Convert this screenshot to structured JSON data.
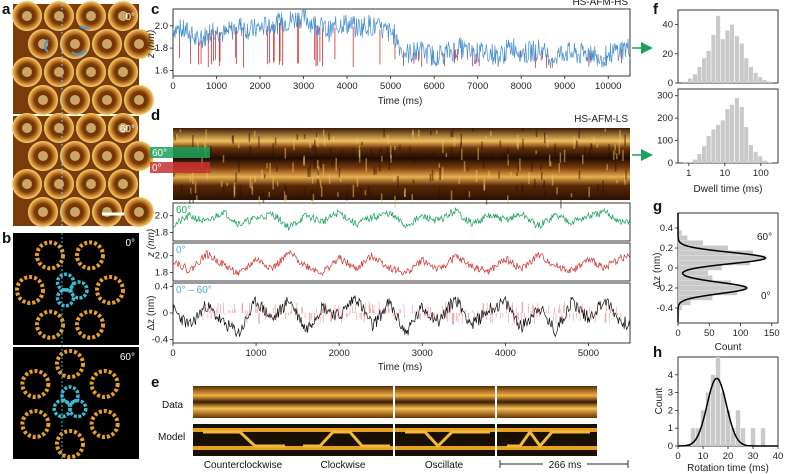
{
  "panel_letters": [
    "a",
    "b",
    "c",
    "d",
    "e",
    "f",
    "g",
    "h"
  ],
  "panel_a": {
    "angles": [
      "0°",
      "60°"
    ]
  },
  "panel_b": {
    "angles": [
      "0°",
      "60°"
    ]
  },
  "panel_c": {
    "title": "HS-AFM-HS",
    "ylabel": "z (nm)",
    "xlabel": "Time (ms)"
  },
  "panel_d": {
    "title": "HS-AFM-LS",
    "kymo_labels": [
      "60°",
      "0°"
    ],
    "trace1_label": "60°",
    "trace2_label": "0°",
    "trace3_label": "0° – 60°",
    "ylabel_z": "z (nm)",
    "ylabel_dz": "Δz (nm)",
    "xlabel": "Time (ms)"
  },
  "panel_e": {
    "row_labels": [
      "Data",
      "Model"
    ],
    "model_names": [
      "Counterclockwise",
      "Clockwise",
      "Oscillate"
    ],
    "scale_label": "266 ms"
  },
  "panel_f": {
    "xlabel": "Dwell time (ms)"
  },
  "panel_g": {
    "ylabel": "Δz (nm)",
    "xlabel": "Count",
    "peak_labels": [
      "60°",
      "0°"
    ]
  },
  "panel_h": {
    "ylabel": "Count",
    "xlabel": "Rotation time (ms)"
  },
  "colors": {
    "blue": "#4a90d0",
    "red": "#d03030",
    "green": "#1aa15a",
    "black": "#111111",
    "gray": "#c9c9c9",
    "orange": "#e8a020",
    "cyan": "#40b8d0"
  },
  "chart_data": [
    {
      "panel": "c",
      "type": "line",
      "title": "HS-AFM-HS",
      "xlabel": "Time (ms)",
      "ylabel": "z (nm)",
      "xlim": [
        0,
        10500
      ],
      "ylim": [
        1.55,
        2.15
      ],
      "xticks": [
        0,
        1000,
        2000,
        3000,
        4000,
        5000,
        6000,
        7000,
        8000,
        9000,
        10000
      ],
      "yticks": [
        1.6,
        1.8,
        2.0
      ],
      "x": [
        0,
        300,
        600,
        900,
        1200,
        1500,
        1800,
        2100,
        2400,
        2700,
        3000,
        3300,
        3600,
        3900,
        4200,
        4500,
        4800,
        5100,
        5250,
        5400,
        5700,
        6000,
        6300,
        6600,
        6900,
        7200,
        7500,
        7800,
        8100,
        8400,
        8700,
        9000,
        9300,
        9600,
        9900,
        10200,
        10450
      ],
      "series": [
        {
          "values": [
            1.98,
            1.95,
            1.85,
            1.97,
            1.92,
            2.0,
            1.96,
            1.99,
            2.02,
            2.05,
            2.08,
            2.0,
            1.95,
            2.03,
            1.98,
            2.01,
            1.96,
            1.92,
            1.78,
            1.75,
            1.77,
            1.73,
            1.76,
            1.8,
            1.74,
            1.78,
            1.72,
            1.82,
            1.75,
            1.79,
            1.71,
            1.77,
            1.74,
            1.76,
            1.72,
            1.78,
            1.8
          ]
        }
      ]
    },
    {
      "panel": "d",
      "type": "line",
      "xlabel": "Time (ms)",
      "xlim": [
        0,
        5500
      ],
      "xticks": [
        0,
        1000,
        2000,
        3000,
        4000,
        5000
      ],
      "x": [
        0,
        200,
        400,
        600,
        800,
        1000,
        1200,
        1400,
        1600,
        1800,
        2000,
        2200,
        2400,
        2600,
        2800,
        3000,
        3200,
        3400,
        3600,
        3800,
        4000,
        4200,
        4400,
        4600,
        4800,
        5000,
        5200,
        5400
      ],
      "series": [
        {
          "name": "60°",
          "ylabel": "z (nm)",
          "ylim": [
            1.7,
            2.15
          ],
          "yticks": [
            1.8,
            2.0
          ],
          "values": [
            1.88,
            2.0,
            1.92,
            2.05,
            1.9,
            1.97,
            2.02,
            1.86,
            2.0,
            1.93,
            2.04,
            1.9,
            1.98,
            2.03,
            1.88,
            1.99,
            1.94,
            2.06,
            1.9,
            2.0,
            1.95,
            2.02,
            1.87,
            2.01,
            1.93,
            1.99,
            2.04,
            1.92
          ]
        },
        {
          "name": "0°",
          "ylabel": "z (nm)",
          "ylim": [
            1.7,
            2.15
          ],
          "yticks": [
            1.8,
            2.0
          ],
          "values": [
            1.95,
            1.82,
            2.02,
            1.9,
            1.78,
            1.96,
            1.85,
            2.03,
            1.88,
            1.8,
            1.97,
            1.84,
            2.0,
            1.86,
            1.79,
            1.95,
            1.83,
            1.99,
            1.87,
            1.81,
            1.96,
            1.84,
            2.01,
            1.88,
            1.82,
            1.95,
            1.86,
            1.98
          ]
        },
        {
          "name": "0° – 60°",
          "ylabel": "Δz (nm)",
          "ylim": [
            -0.45,
            0.45
          ],
          "yticks": [
            -0.4,
            0,
            0.4
          ],
          "values": [
            0.05,
            -0.2,
            0.12,
            -0.15,
            -0.3,
            0.18,
            -0.1,
            0.2,
            -0.25,
            0.1,
            -0.05,
            0.25,
            -0.2,
            0.15,
            -0.3,
            0.08,
            -0.12,
            0.22,
            -0.18,
            0.05,
            0.16,
            -0.22,
            0.1,
            -0.28,
            0.18,
            -0.08,
            0.2,
            -0.15
          ]
        }
      ]
    },
    {
      "panel": "f",
      "type": "bar",
      "xlabel": "Dwell time (ms)",
      "xscale": "log",
      "xlim": [
        0.5,
        300
      ],
      "xticks": [
        1,
        10,
        100
      ],
      "bin_centers": [
        0.8,
        1.1,
        1.5,
        2.0,
        2.7,
        3.6,
        4.9,
        6.6,
        8.9,
        12,
        16,
        22,
        30,
        40,
        54,
        73,
        98,
        130,
        180
      ],
      "series": [
        {
          "ylim": [
            0,
            50
          ],
          "yticks": [
            0,
            20,
            40
          ],
          "values": [
            1,
            3,
            6,
            11,
            17,
            22,
            33,
            46,
            30,
            36,
            40,
            32,
            27,
            17,
            11,
            7,
            4,
            2,
            1
          ]
        },
        {
          "ylim": [
            0,
            330
          ],
          "yticks": [
            0,
            100,
            200,
            300
          ],
          "values": [
            2,
            5,
            15,
            40,
            75,
            120,
            150,
            170,
            190,
            240,
            260,
            290,
            250,
            160,
            80,
            50,
            30,
            10,
            3
          ]
        }
      ]
    },
    {
      "panel": "g",
      "type": "bar",
      "orientation": "horizontal",
      "ylabel": "Δz (nm)",
      "xlabel": "Count",
      "ylim": [
        -0.55,
        0.55
      ],
      "xlim": [
        0,
        160
      ],
      "yticks": [
        -0.4,
        -0.2,
        0,
        0.2,
        0.4
      ],
      "xticks": [
        0,
        50,
        100,
        150
      ],
      "bin_centers": [
        -0.45,
        -0.4,
        -0.35,
        -0.3,
        -0.25,
        -0.2,
        -0.15,
        -0.1,
        -0.05,
        0.0,
        0.05,
        0.1,
        0.15,
        0.2,
        0.25,
        0.3,
        0.35,
        0.4,
        0.45
      ],
      "values": [
        2,
        6,
        20,
        55,
        95,
        110,
        85,
        55,
        48,
        70,
        115,
        140,
        120,
        80,
        40,
        15,
        6,
        2,
        1
      ]
    },
    {
      "panel": "h",
      "type": "bar",
      "ylabel": "Count",
      "xlabel": "Rotation time (ms)",
      "xlim": [
        0,
        40
      ],
      "ylim": [
        0,
        5
      ],
      "xticks": [
        0,
        10,
        20,
        30,
        40
      ],
      "yticks": [
        0,
        1,
        2,
        3,
        4
      ],
      "bin_centers": [
        6,
        8,
        10,
        12,
        14,
        16,
        18,
        20,
        22,
        24,
        26,
        28,
        30,
        32,
        34,
        36
      ],
      "values": [
        1,
        1,
        2,
        3,
        4,
        5,
        3,
        2,
        1,
        2,
        1,
        0,
        1,
        0,
        1,
        0
      ]
    }
  ]
}
